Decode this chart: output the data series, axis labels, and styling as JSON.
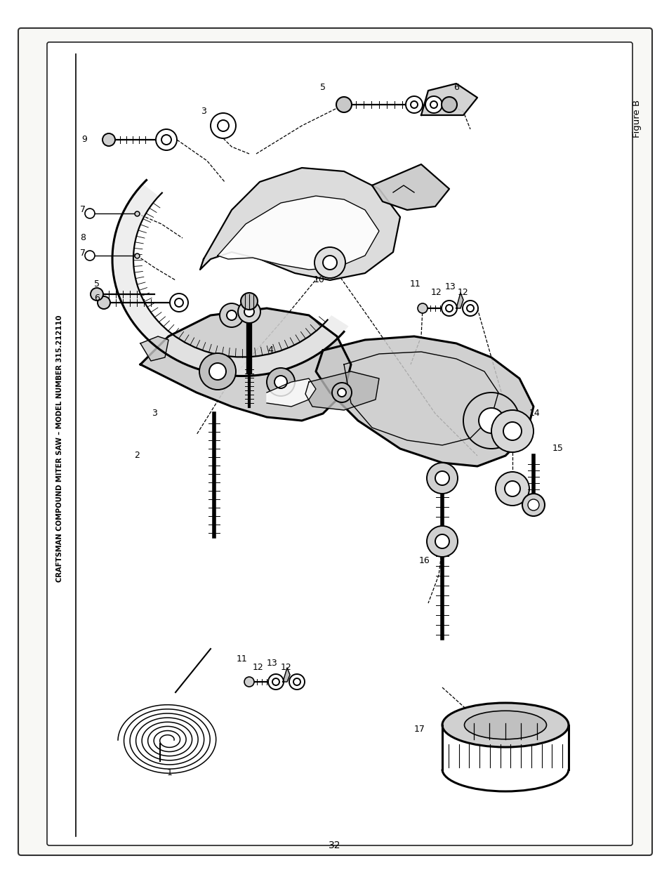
{
  "page_number": "32",
  "figure_label": "Figure B",
  "side_text": "CRAFTSMAN COMPOUND MITER SAW – MODEL NUMBER 315.212110",
  "background_color": "#ffffff",
  "border_color": "#000000",
  "text_color": "#000000",
  "fig_width": 9.54,
  "fig_height": 12.39,
  "dpi": 100,
  "page_bg": "#f5f5f0",
  "inner_bg": "#ffffff"
}
